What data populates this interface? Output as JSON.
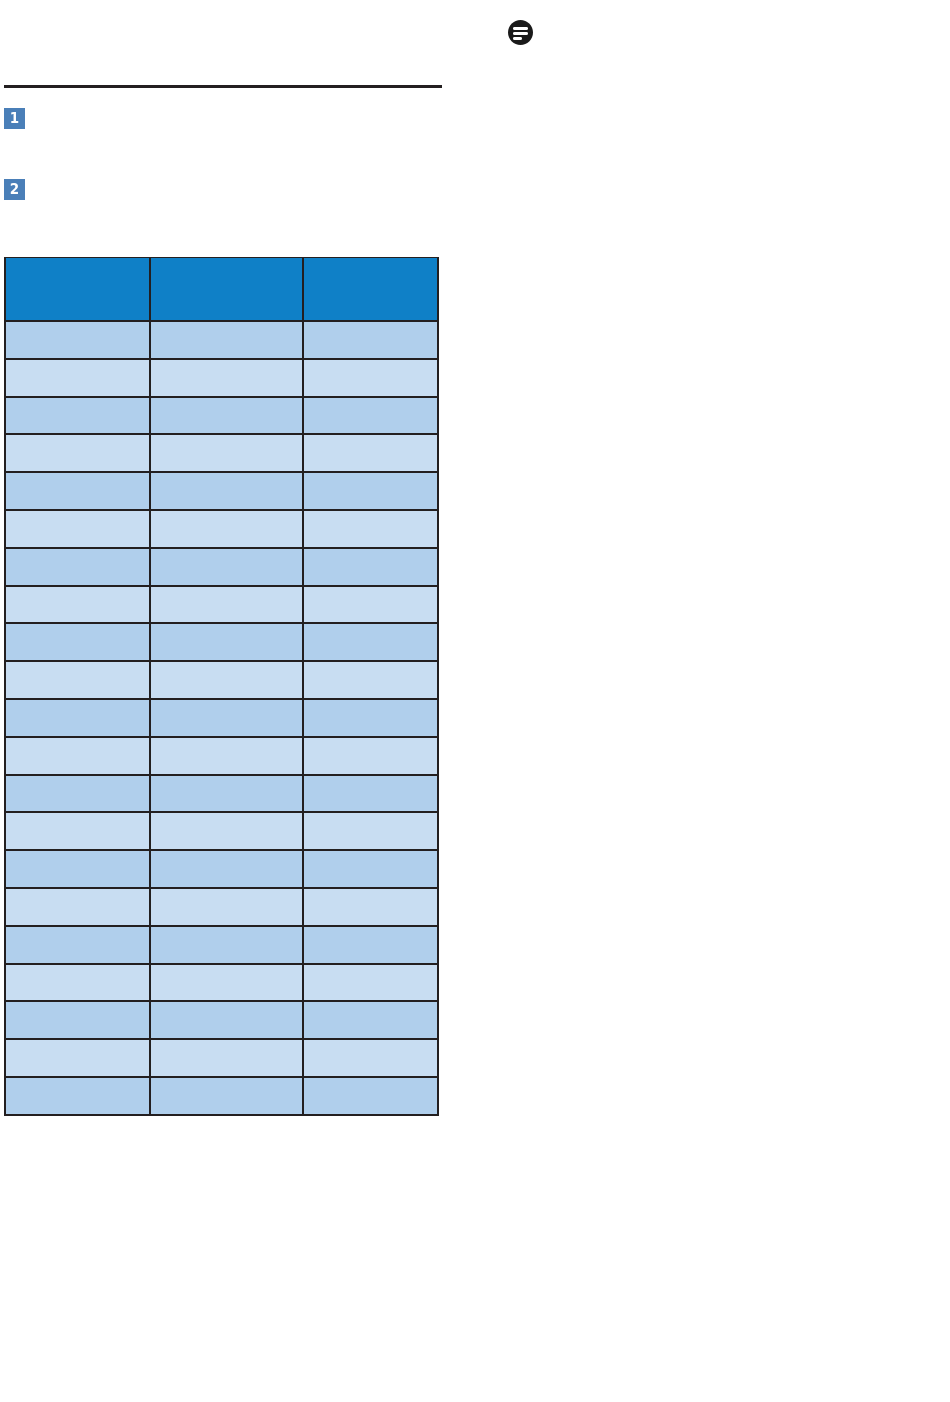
{
  "steps": [
    {
      "number": "1"
    },
    {
      "number": "2"
    }
  ],
  "note_icon": "note-icon",
  "table": {
    "columns": 3,
    "headers": [
      "",
      "",
      ""
    ],
    "row_count": 21
  },
  "colors": {
    "header": "#0f80c7",
    "row_dark": "#b0cfec",
    "row_light": "#c8ddf2",
    "badge": "#4a7fb8"
  }
}
